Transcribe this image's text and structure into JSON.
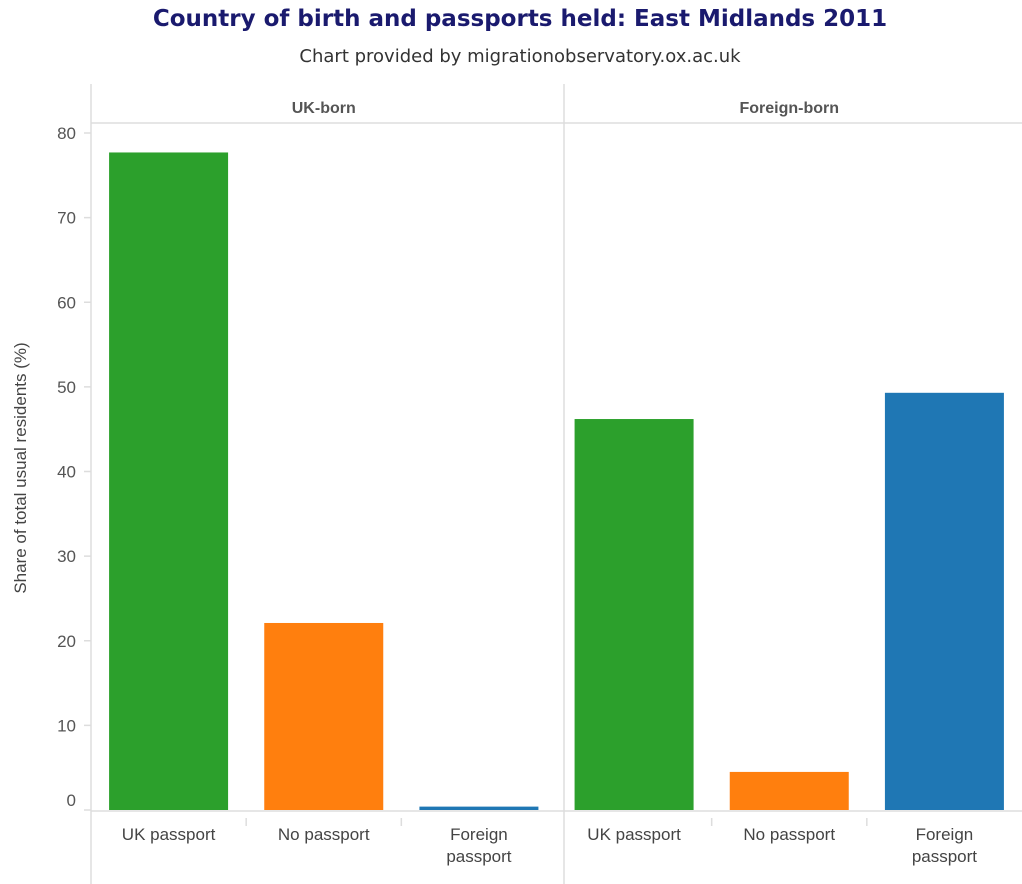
{
  "chart_data": {
    "type": "bar",
    "title": "Country of birth and passports held: East Midlands 2011",
    "subtitle": "Chart provided by migrationobservatory.ox.ac.uk",
    "ylabel": "Share of total usual residents (%)",
    "ylim": [
      0,
      80
    ],
    "yticks": [
      0,
      10,
      20,
      30,
      40,
      50,
      60,
      70,
      80
    ],
    "grid": false,
    "categories": [
      "UK passport",
      "No passport",
      "Foreign passport"
    ],
    "category_lines": [
      [
        "UK passport"
      ],
      [
        "No passport"
      ],
      [
        "Foreign",
        "passport"
      ]
    ],
    "panels": [
      {
        "name": "UK-born",
        "values": [
          77.7,
          22.1,
          0.4
        ]
      },
      {
        "name": "Foreign-born",
        "values": [
          46.2,
          4.5,
          49.3
        ]
      }
    ],
    "colors": {
      "UK passport": "#2ca02c",
      "No passport": "#ff7f0e",
      "Foreign passport": "#1f77b4"
    }
  }
}
